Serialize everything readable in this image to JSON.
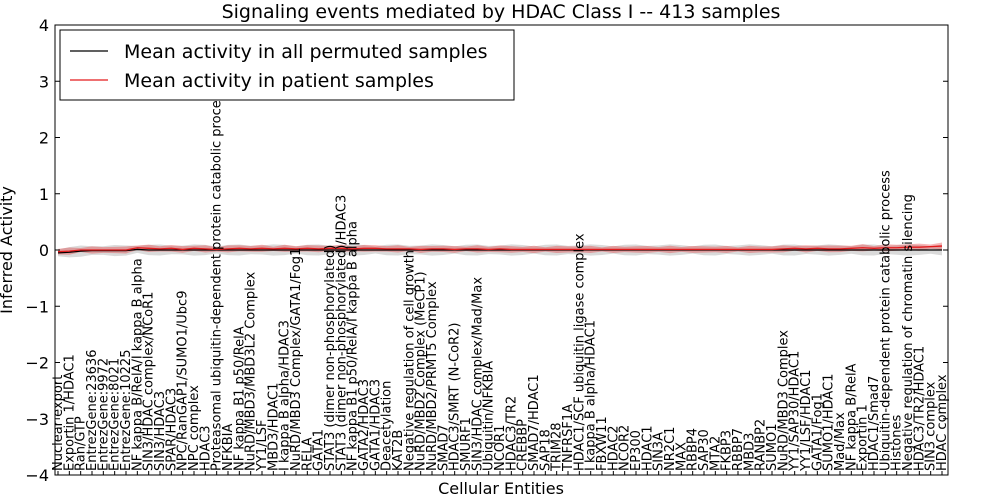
{
  "chart_data": {
    "type": "line",
    "title": "Signaling events mediated by HDAC Class I -- 413 samples",
    "xlabel": "Cellular Entities",
    "ylabel": "Inferred Activity",
    "ylim": [
      -4,
      4
    ],
    "yticks": [
      -4,
      -3,
      -2,
      -1,
      0,
      1,
      2,
      3,
      4
    ],
    "ytick_labels": [
      "−4",
      "−3",
      "−2",
      "−1",
      "0",
      "1",
      "2",
      "3",
      "4"
    ],
    "legend_position": "top-left",
    "categories": [
      "Nuclear export",
      "Exportin 1/HDAC1",
      "Ran/GTP",
      "EntrezGene:23636",
      "EntrezGene:9972",
      "EntrezGene:8021",
      "EntrezGene:10225",
      "NF kappa B/RelA/I kappa B alpha",
      "SIN3/HDAC complex/NCoR1",
      "SIN3/HDAC3",
      "SPAR/HDAC3",
      "NPC/RanGAP1/SUMO1/Ubc9",
      "NPC complex",
      "HDAC3",
      "Proteasomal ubiquitin-dependent protein catabolic process",
      "NFKBIA",
      "NF kappa B1 p50/RelA",
      "NuRD/MBD3/MBD3L2 Complex",
      "YY1/LSF",
      "MBD3/HDAC1",
      "I kappa B alpha/HDAC3",
      "NuRD/MBD3 Complex/GATA1/Fog1",
      "RELA",
      "GATA1",
      "STAT3 (dimer non-phosphorylated)",
      "STAT3 (dimer non-phosphorylated)/HDAC3",
      "NF kappa B1 p50/RelA/I kappa B alpha",
      "GATA2/HDAC3",
      "GATA1/HDAC3",
      "Deacetylation",
      "KAT2B",
      "Negative regulation of cell growth",
      "NuRD/MBD2 Complex (MeCP1)",
      "NuRD/MBD2/PRMT5 Complex",
      "SMAD7",
      "HDAC3/SMRT (N-CoR2)",
      "SMURF1",
      "SIN3/HDAC complex/Mad/Max",
      "Ubiquitin/NFKBIA",
      "NCOR1",
      "HDAC3/TR2",
      "CREBBP",
      "SMAD7/HDAC1",
      "SAP18",
      "TRIM28",
      "TNFRSF1A",
      "HDAC1/SCF ubiquitin ligase complex",
      "I kappa B alpha/HDAC1",
      "FBXW11",
      "HDAC2",
      "NCOR2",
      "EP300",
      "HDAC1",
      "SIN3A",
      "NR2C1",
      "MAX",
      "RBBP4",
      "SAP30",
      "MTA2",
      "FKBP3",
      "RBBP7",
      "MBD3",
      "RANBP2",
      "SUMO1",
      "NuRD/MBD3 Complex",
      "YY1/SAP30/HDAC1",
      "YY1/LSF/HDAC1",
      "GATA1/Fog1",
      "SUMO1/HDAC1",
      "Mad/Max",
      "NF kappa B/RelA",
      "Exportin 1",
      "HDAC1/Smad7",
      "Ubiquitin-dependent protein catabolic process",
      "Histones",
      "Negative regulation of chromatin silencing",
      "HDAC3/TR2/HDAC1",
      "SIN3 complex",
      "HDAC complex"
    ],
    "series": [
      {
        "name": "Mean activity in all permuted samples",
        "color": "#000000",
        "values": [
          -0.05,
          -0.04,
          -0.02,
          -0.01,
          -0.01,
          -0.01,
          -0.01,
          0.01,
          0,
          0,
          0,
          0,
          0,
          0,
          0,
          0,
          0,
          0,
          0,
          0,
          0,
          0,
          0,
          0,
          0,
          0,
          0,
          0,
          0,
          0,
          0,
          0,
          0,
          0,
          0,
          0,
          0,
          0,
          0,
          0,
          0,
          0,
          0,
          0,
          0,
          0,
          0,
          0,
          0,
          0,
          0,
          0,
          0,
          0,
          0,
          0,
          0,
          0,
          0,
          0,
          0,
          0,
          0,
          0,
          0,
          0,
          0,
          0,
          0,
          0,
          0,
          0,
          0,
          0,
          0,
          0,
          0,
          0,
          0
        ]
      },
      {
        "name": "Mean activity in patient samples",
        "color": "#e31a1c",
        "values": [
          -0.03,
          -0.02,
          0,
          0,
          0,
          0,
          0,
          0.04,
          0.03,
          0.02,
          0.03,
          0.01,
          0.03,
          0.02,
          0.01,
          0.02,
          0.03,
          0.02,
          0.03,
          0.02,
          0.03,
          0.02,
          0.03,
          0.02,
          0.03,
          0.03,
          0.02,
          0.03,
          0.03,
          0.02,
          0.02,
          0.02,
          0.01,
          0.02,
          0.02,
          0.01,
          0.02,
          0.02,
          0.01,
          0.02,
          0.01,
          0.01,
          0.01,
          0.01,
          0.01,
          0.01,
          0.01,
          0.01,
          0.01,
          0.01,
          0.01,
          0.01,
          0.01,
          0.01,
          0.01,
          0.01,
          0.01,
          0.01,
          0.01,
          0.01,
          0.01,
          0.01,
          0.01,
          0.01,
          0.02,
          0.03,
          0.02,
          0.03,
          0.02,
          0.02,
          0.03,
          0.04,
          0.03,
          0.04,
          0.04,
          0.05,
          0.05,
          0.06,
          0.07
        ]
      }
    ]
  }
}
